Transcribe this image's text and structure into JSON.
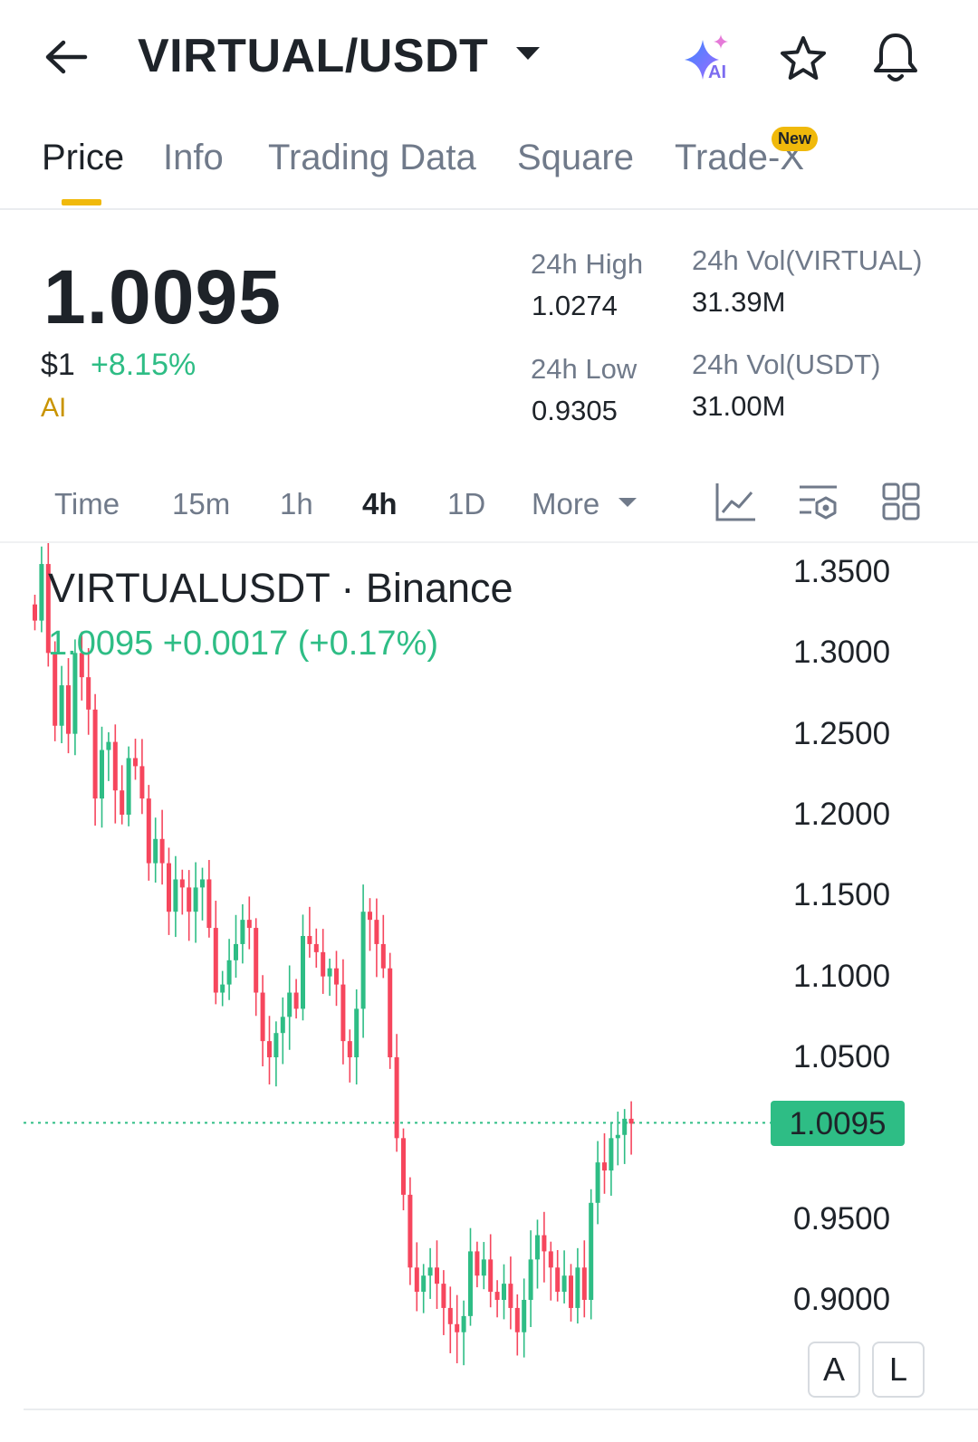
{
  "header": {
    "pair": "VIRTUAL/USDT",
    "ai_badge": "AI"
  },
  "tabs": [
    {
      "label": "Price",
      "active": true
    },
    {
      "label": "Info"
    },
    {
      "label": "Trading Data"
    },
    {
      "label": "Square"
    },
    {
      "label": "Trade-X",
      "badge": "New"
    }
  ],
  "ticker": {
    "last_price": "1.0095",
    "usd_price": "$1",
    "change_pct": "+8.15%",
    "ai_label": "AI",
    "high_label": "24h High",
    "high_value": "1.0274",
    "low_label": "24h Low",
    "low_value": "0.9305",
    "vol_base_label": "24h Vol(VIRTUAL)",
    "vol_base_value": "31.39M",
    "vol_quote_label": "24h Vol(USDT)",
    "vol_quote_value": "31.00M"
  },
  "intervals": [
    {
      "label": "Time"
    },
    {
      "label": "15m"
    },
    {
      "label": "1h"
    },
    {
      "label": "4h",
      "active": true
    },
    {
      "label": "1D"
    },
    {
      "label": "More"
    }
  ],
  "chart_overlay": {
    "symbol_line": "VIRTUALUSDT · Binance",
    "ohlc_line": "1.0095  +0.0017 (+0.17%)",
    "current_price_tag": "1.0095",
    "btn_a": "A",
    "btn_l": "L"
  },
  "colors": {
    "up": "#2ebd85",
    "down": "#f6465d",
    "accent": "#f0b90b"
  },
  "chart_data": {
    "type": "candlestick",
    "symbol": "VIRTUALUSDT",
    "exchange": "Binance",
    "y_ticks": [
      "1.3500",
      "1.3000",
      "1.2500",
      "1.2000",
      "1.1500",
      "1.1000",
      "1.0500",
      "0.9500",
      "0.9000"
    ],
    "ylim": [
      0.875,
      1.36
    ],
    "last_price": 1.0095,
    "closes": [
      1.32,
      1.355,
      1.3,
      1.255,
      1.28,
      1.25,
      1.3,
      1.285,
      1.265,
      1.21,
      1.24,
      1.245,
      1.215,
      1.2,
      1.235,
      1.23,
      1.21,
      1.17,
      1.185,
      1.17,
      1.14,
      1.16,
      1.155,
      1.14,
      1.155,
      1.16,
      1.13,
      1.09,
      1.095,
      1.11,
      1.12,
      1.135,
      1.13,
      1.09,
      1.06,
      1.05,
      1.065,
      1.075,
      1.09,
      1.08,
      1.125,
      1.12,
      1.115,
      1.1,
      1.105,
      1.095,
      1.06,
      1.05,
      1.08,
      1.14,
      1.135,
      1.12,
      1.105,
      1.05,
      1.0,
      0.965,
      0.92,
      0.905,
      0.915,
      0.92,
      0.91,
      0.895,
      0.885,
      0.88,
      0.89,
      0.93,
      0.915,
      0.925,
      0.905,
      0.9,
      0.91,
      0.895,
      0.88,
      0.9,
      0.925,
      0.94,
      0.93,
      0.92,
      0.905,
      0.915,
      0.895,
      0.92,
      0.9,
      0.96,
      0.985,
      0.98,
      1.0,
      1.002,
      1.012,
      1.009
    ]
  }
}
